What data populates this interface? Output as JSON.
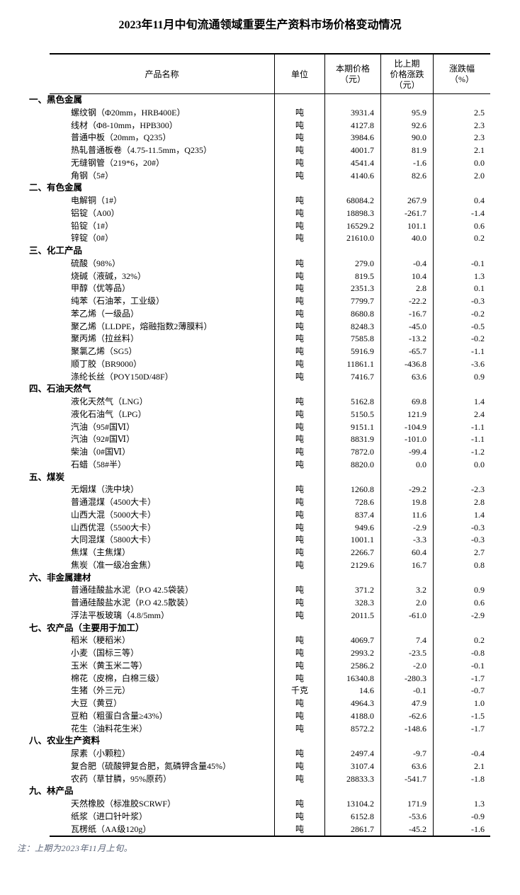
{
  "page": {
    "title": "2023年11月中旬流通领域重要生产资料市场价格变动情况",
    "note": "注：上期为2023年11月上旬。"
  },
  "table": {
    "header": {
      "product": "产品名称",
      "unit": "单位",
      "price": [
        "本期价格",
        "（元）"
      ],
      "change": [
        "比上期",
        "价格涨跌",
        "（元）"
      ],
      "pct": [
        "涨跌幅",
        "（%）"
      ]
    },
    "sections": [
      {
        "title": "一、黑色金属",
        "rows": [
          {
            "name": "螺纹钢（Φ20mm，HRB400E）",
            "unit": "吨",
            "price": "3931.4",
            "change": "95.9",
            "pct": "2.5"
          },
          {
            "name": "线材（Φ8-10mm，HPB300）",
            "unit": "吨",
            "price": "4127.8",
            "change": "92.6",
            "pct": "2.3"
          },
          {
            "name": "普通中板（20mm，Q235）",
            "unit": "吨",
            "price": "3984.6",
            "change": "90.0",
            "pct": "2.3"
          },
          {
            "name": "热轧普通板卷（4.75-11.5mm，Q235）",
            "unit": "吨",
            "price": "4001.7",
            "change": "81.9",
            "pct": "2.1"
          },
          {
            "name": "无缝钢管（219*6，20#）",
            "unit": "吨",
            "price": "4541.4",
            "change": "-1.6",
            "pct": "0.0"
          },
          {
            "name": "角钢（5#）",
            "unit": "吨",
            "price": "4140.6",
            "change": "82.6",
            "pct": "2.0"
          }
        ]
      },
      {
        "title": "二、有色金属",
        "rows": [
          {
            "name": "电解铜（1#）",
            "unit": "吨",
            "price": "68084.2",
            "change": "267.9",
            "pct": "0.4"
          },
          {
            "name": "铝锭（A00）",
            "unit": "吨",
            "price": "18898.3",
            "change": "-261.7",
            "pct": "-1.4"
          },
          {
            "name": "铅锭（1#）",
            "unit": "吨",
            "price": "16529.2",
            "change": "101.1",
            "pct": "0.6"
          },
          {
            "name": "锌锭（0#）",
            "unit": "吨",
            "price": "21610.0",
            "change": "40.0",
            "pct": "0.2"
          }
        ]
      },
      {
        "title": "三、化工产品",
        "rows": [
          {
            "name": "硫酸（98%）",
            "unit": "吨",
            "price": "279.0",
            "change": "-0.4",
            "pct": "-0.1"
          },
          {
            "name": "烧碱（液碱，32%）",
            "unit": "吨",
            "price": "819.5",
            "change": "10.4",
            "pct": "1.3"
          },
          {
            "name": "甲醇（优等品）",
            "unit": "吨",
            "price": "2351.3",
            "change": "2.8",
            "pct": "0.1"
          },
          {
            "name": "纯苯（石油苯，工业级）",
            "unit": "吨",
            "price": "7799.7",
            "change": "-22.2",
            "pct": "-0.3"
          },
          {
            "name": "苯乙烯（一级品）",
            "unit": "吨",
            "price": "8680.8",
            "change": "-16.7",
            "pct": "-0.2"
          },
          {
            "name": "聚乙烯（LLDPE，熔融指数2薄膜料）",
            "unit": "吨",
            "price": "8248.3",
            "change": "-45.0",
            "pct": "-0.5"
          },
          {
            "name": "聚丙烯（拉丝料）",
            "unit": "吨",
            "price": "7585.8",
            "change": "-13.2",
            "pct": "-0.2"
          },
          {
            "name": "聚氯乙烯（SG5）",
            "unit": "吨",
            "price": "5916.9",
            "change": "-65.7",
            "pct": "-1.1"
          },
          {
            "name": "顺丁胶（BR9000）",
            "unit": "吨",
            "price": "11861.1",
            "change": "-436.8",
            "pct": "-3.6"
          },
          {
            "name": "涤纶长丝（POY150D/48F）",
            "unit": "吨",
            "price": "7416.7",
            "change": "63.6",
            "pct": "0.9"
          }
        ]
      },
      {
        "title": "四、石油天然气",
        "rows": [
          {
            "name": "液化天然气（LNG）",
            "unit": "吨",
            "price": "5162.8",
            "change": "69.8",
            "pct": "1.4"
          },
          {
            "name": "液化石油气（LPG）",
            "unit": "吨",
            "price": "5150.5",
            "change": "121.9",
            "pct": "2.4"
          },
          {
            "name": "汽油（95#国Ⅵ）",
            "unit": "吨",
            "price": "9151.1",
            "change": "-104.9",
            "pct": "-1.1"
          },
          {
            "name": "汽油（92#国Ⅵ）",
            "unit": "吨",
            "price": "8831.9",
            "change": "-101.0",
            "pct": "-1.1"
          },
          {
            "name": "柴油（0#国Ⅵ）",
            "unit": "吨",
            "price": "7872.0",
            "change": "-99.4",
            "pct": "-1.2"
          },
          {
            "name": "石蜡（58#半）",
            "unit": "吨",
            "price": "8820.0",
            "change": "0.0",
            "pct": "0.0"
          }
        ]
      },
      {
        "title": "五、煤炭",
        "rows": [
          {
            "name": "无烟煤（洗中块）",
            "unit": "吨",
            "price": "1260.8",
            "change": "-29.2",
            "pct": "-2.3"
          },
          {
            "name": "普通混煤（4500大卡）",
            "unit": "吨",
            "price": "728.6",
            "change": "19.8",
            "pct": "2.8"
          },
          {
            "name": "山西大混（5000大卡）",
            "unit": "吨",
            "price": "837.4",
            "change": "11.6",
            "pct": "1.4"
          },
          {
            "name": "山西优混（5500大卡）",
            "unit": "吨",
            "price": "949.6",
            "change": "-2.9",
            "pct": "-0.3"
          },
          {
            "name": "大同混煤（5800大卡）",
            "unit": "吨",
            "price": "1001.1",
            "change": "-3.3",
            "pct": "-0.3"
          },
          {
            "name": "焦煤（主焦煤）",
            "unit": "吨",
            "price": "2266.7",
            "change": "60.4",
            "pct": "2.7"
          },
          {
            "name": "焦炭（准一级冶金焦）",
            "unit": "吨",
            "price": "2129.6",
            "change": "16.7",
            "pct": "0.8"
          }
        ]
      },
      {
        "title": "六、非金属建材",
        "rows": [
          {
            "name": "普通硅酸盐水泥（P.O 42.5袋装）",
            "unit": "吨",
            "price": "371.2",
            "change": "3.2",
            "pct": "0.9"
          },
          {
            "name": "普通硅酸盐水泥（P.O 42.5散装）",
            "unit": "吨",
            "price": "328.3",
            "change": "2.0",
            "pct": "0.6"
          },
          {
            "name": "浮法平板玻璃（4.8/5mm）",
            "unit": "吨",
            "price": "2011.5",
            "change": "-61.0",
            "pct": "-2.9"
          }
        ]
      },
      {
        "title": "七、农产品（主要用于加工）",
        "rows": [
          {
            "name": "稻米（粳稻米）",
            "unit": "吨",
            "price": "4069.7",
            "change": "7.4",
            "pct": "0.2"
          },
          {
            "name": "小麦（国标三等）",
            "unit": "吨",
            "price": "2993.2",
            "change": "-23.5",
            "pct": "-0.8"
          },
          {
            "name": "玉米（黄玉米二等）",
            "unit": "吨",
            "price": "2586.2",
            "change": "-2.0",
            "pct": "-0.1"
          },
          {
            "name": "棉花（皮棉，白棉三级）",
            "unit": "吨",
            "price": "16340.8",
            "change": "-280.3",
            "pct": "-1.7"
          },
          {
            "name": "生猪（外三元）",
            "unit": "千克",
            "price": "14.6",
            "change": "-0.1",
            "pct": "-0.7"
          },
          {
            "name": "大豆（黄豆）",
            "unit": "吨",
            "price": "4964.3",
            "change": "47.9",
            "pct": "1.0"
          },
          {
            "name": "豆粕（粗蛋白含量≥43%）",
            "unit": "吨",
            "price": "4188.0",
            "change": "-62.6",
            "pct": "-1.5"
          },
          {
            "name": "花生（油料花生米）",
            "unit": "吨",
            "price": "8572.2",
            "change": "-148.6",
            "pct": "-1.7"
          }
        ]
      },
      {
        "title": "八、农业生产资料",
        "rows": [
          {
            "name": "尿素（小颗粒）",
            "unit": "吨",
            "price": "2497.4",
            "change": "-9.7",
            "pct": "-0.4"
          },
          {
            "name": "复合肥（硫酸钾复合肥，氮磷钾含量45%）",
            "unit": "吨",
            "price": "3107.4",
            "change": "63.6",
            "pct": "2.1"
          },
          {
            "name": "农药（草甘膦，95%原药）",
            "unit": "吨",
            "price": "28833.3",
            "change": "-541.7",
            "pct": "-1.8"
          }
        ]
      },
      {
        "title": "九、林产品",
        "rows": [
          {
            "name": "天然橡胶（标准胶SCRWF）",
            "unit": "吨",
            "price": "13104.2",
            "change": "171.9",
            "pct": "1.3"
          },
          {
            "name": "纸浆（进口针叶浆）",
            "unit": "吨",
            "price": "6152.8",
            "change": "-53.6",
            "pct": "-0.9"
          },
          {
            "name": "瓦楞纸（AA级120g）",
            "unit": "吨",
            "price": "2861.7",
            "change": "-45.2",
            "pct": "-1.6"
          }
        ]
      }
    ]
  }
}
